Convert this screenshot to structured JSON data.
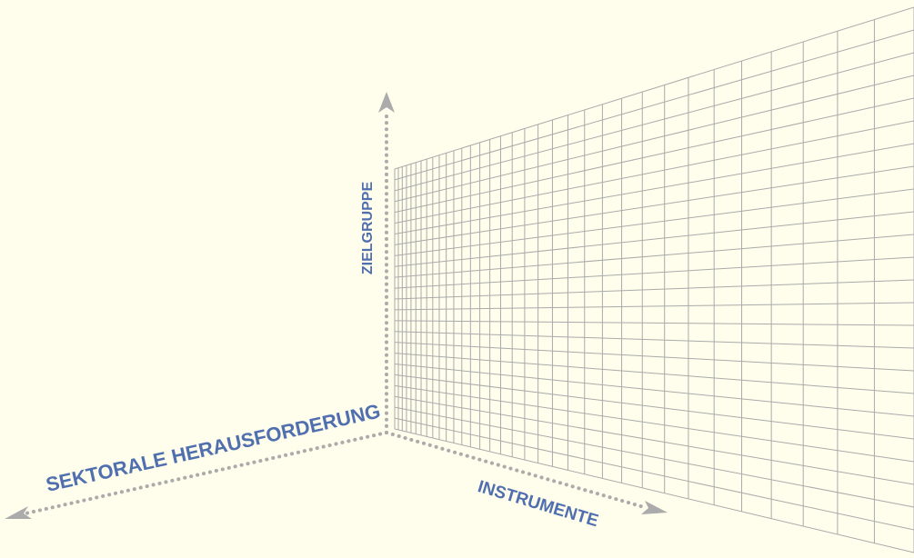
{
  "colors": {
    "background": "#fffdeb",
    "grid_line": "#a9abab",
    "axis": "#ababab",
    "label": "#4f6faf"
  },
  "axes": {
    "vertical": {
      "label": "ZIELGRUPPE"
    },
    "right": {
      "label": "INSTRUMENTE"
    },
    "left": {
      "label": "SEKTORALE HERAUSFORDERUNG"
    }
  }
}
